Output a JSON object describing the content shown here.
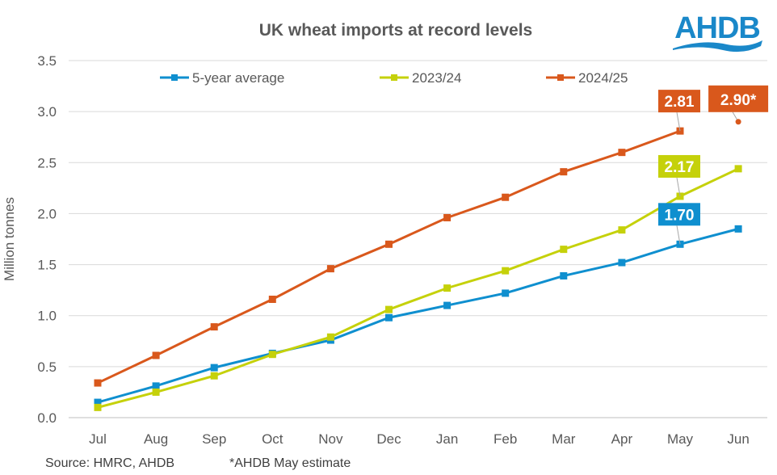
{
  "chart_data": {
    "type": "line",
    "title": "UK wheat imports at record levels",
    "ylabel": "Million tonnes",
    "xlabel": "",
    "ylim": [
      0,
      3.5
    ],
    "yticks": [
      "0.0",
      "0.5",
      "1.0",
      "1.5",
      "2.0",
      "2.5",
      "3.0",
      "3.5"
    ],
    "grid": true,
    "legend_position": "top",
    "categories": [
      "Jul",
      "Aug",
      "Sep",
      "Oct",
      "Nov",
      "Dec",
      "Jan",
      "Feb",
      "Mar",
      "Apr",
      "May",
      "Jun"
    ],
    "series": [
      {
        "name": "5-year average",
        "color": "#0f8fcf",
        "values": [
          0.15,
          0.31,
          0.49,
          0.63,
          0.76,
          0.98,
          1.1,
          1.22,
          1.39,
          1.52,
          1.7,
          1.85
        ],
        "label": "1.70",
        "label_index": 10
      },
      {
        "name": "2023/24",
        "color": "#c5d10a",
        "values": [
          0.1,
          0.25,
          0.41,
          0.62,
          0.79,
          1.06,
          1.27,
          1.44,
          1.65,
          1.84,
          2.17,
          2.44
        ],
        "label": "2.17",
        "label_index": 10
      },
      {
        "name": "2024/25",
        "color": "#d9581c",
        "values": [
          0.34,
          0.61,
          0.89,
          1.16,
          1.46,
          1.7,
          1.96,
          2.16,
          2.41,
          2.6,
          2.81,
          null
        ],
        "label": "2.81",
        "label_index": 10
      }
    ],
    "estimate": {
      "category": "Jun",
      "value": 2.9,
      "label": "2.90*",
      "color": "#d9581c"
    },
    "source": "Source: HMRC, AHDB",
    "note": "*AHDB May estimate"
  },
  "logo": {
    "text": "AHDB",
    "color": "#1a88c9"
  }
}
